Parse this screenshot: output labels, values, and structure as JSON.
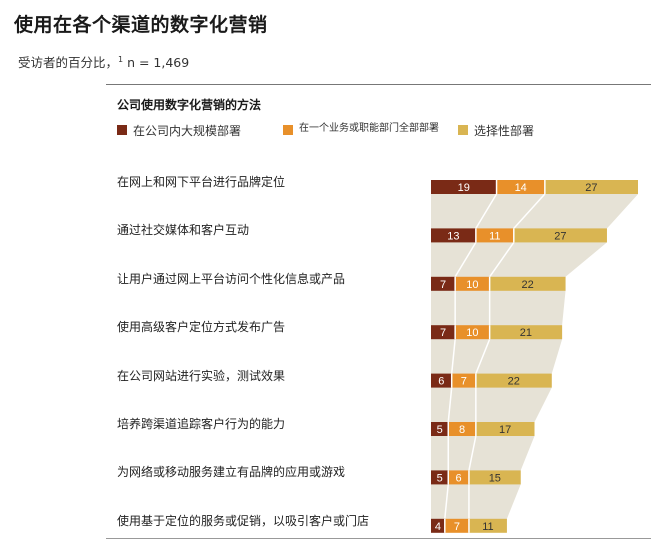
{
  "page": {
    "title": "使用在各个渠道的数字化营销",
    "subtitle": "受访者的百分比，",
    "subtitle_footnote": "1",
    "subtitle_n": " n = 1,469"
  },
  "colors": {
    "series1": "#7a2a16",
    "series2": "#e8902a",
    "series3": "#d9b552",
    "background_band": "#e6e2d6",
    "divider": "#ffffff"
  },
  "chart_data": {
    "type": "bar",
    "stacked": true,
    "orientation": "horizontal",
    "title": "公司使用数字化营销的方法",
    "categories": [
      "在网上和网下平台进行品牌定位",
      "通过社交媒体和客户互动",
      "让用户通过网上平台访问个性化信息或产品",
      "使用高级客户定位方式发布广告",
      "在公司网站进行实验，测试效果",
      "培养跨渠道追踪客户行为的能力",
      "为网络或移动服务建立有品牌的应用或游戏",
      "使用基于定位的服务或促销，以吸引客户或门店"
    ],
    "series": [
      {
        "name": "在公司内大规模部署",
        "values": [
          19,
          13,
          7,
          7,
          6,
          5,
          5,
          4
        ]
      },
      {
        "name": "在一个业务或职能部门全部部署",
        "values": [
          14,
          11,
          10,
          10,
          7,
          8,
          6,
          7
        ]
      },
      {
        "name": "选择性部署",
        "values": [
          27,
          27,
          22,
          21,
          22,
          17,
          15,
          11
        ]
      }
    ],
    "legend_position": "top"
  }
}
